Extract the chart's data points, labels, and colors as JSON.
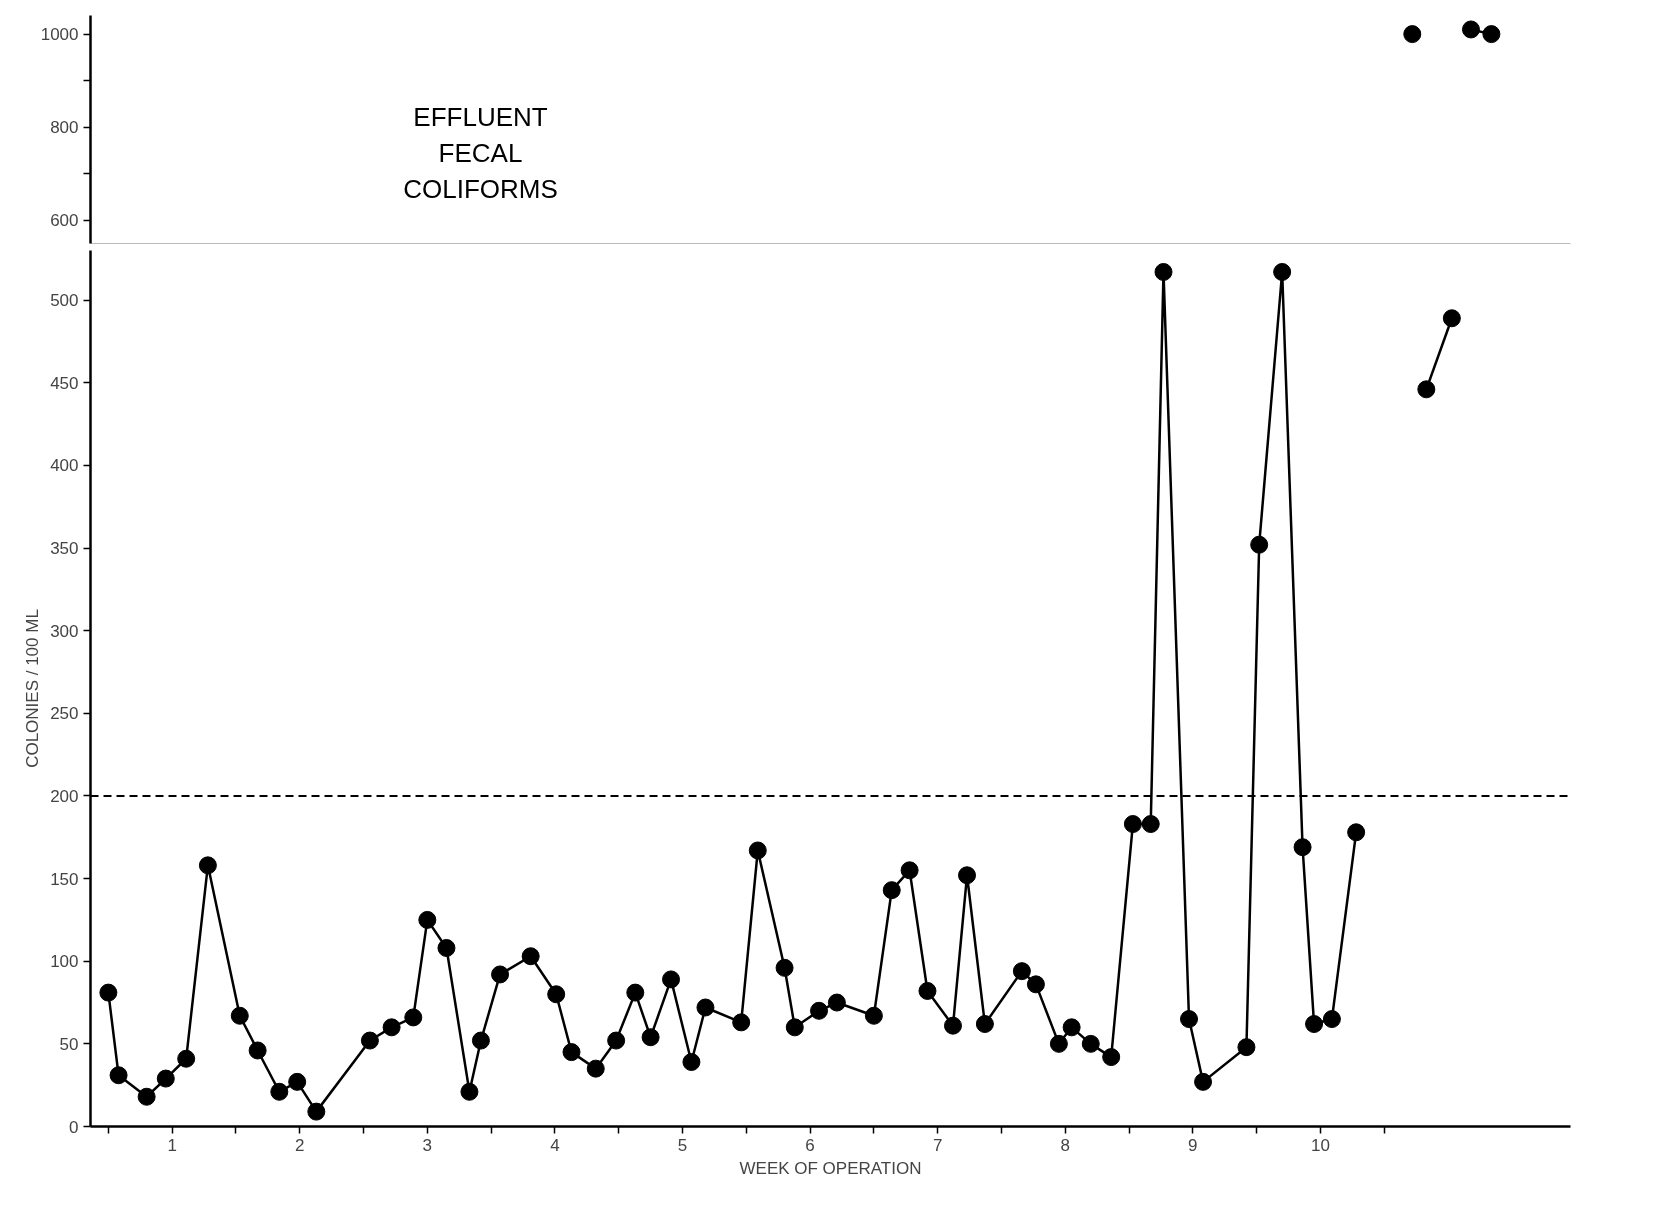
{
  "chart_data": [
    {
      "type": "line",
      "title": "EFFLUENT FECAL COLIFORMS",
      "marker": "circle",
      "line_style": "solid",
      "tick_labels": "y",
      "xlim": [
        -0.14,
        11.46
      ],
      "ylim": [
        550,
        1040
      ],
      "yticks": [
        600,
        {
          "value": 700,
          "label": null
        },
        800,
        {
          "value": 900,
          "label": null
        },
        1000
      ],
      "series": [
        {
          "color": "#000000",
          "x": [
            10.22
          ],
          "values": [
            1000
          ]
        },
        {
          "color": "#000000",
          "x": [
            10.68,
            10.84
          ],
          "values": [
            1010,
            1000
          ]
        }
      ]
    },
    {
      "type": "line",
      "xlabel": "WEEK OF OPERATION",
      "ylabel": "COLONIES / 100 ML",
      "marker": "circle",
      "line_style": "solid",
      "xlim": [
        -0.14,
        11.46
      ],
      "ylim": [
        0,
        530
      ],
      "yticks": [
        0,
        50,
        100,
        150,
        200,
        250,
        300,
        350,
        400,
        450,
        500
      ],
      "xticks": [
        {
          "value": 0,
          "label": null
        },
        {
          "value": 0.5,
          "label": "1"
        },
        {
          "value": 1,
          "label": null
        },
        {
          "value": 1.5,
          "label": "2"
        },
        {
          "value": 2,
          "label": null
        },
        {
          "value": 2.5,
          "label": "3"
        },
        {
          "value": 3,
          "label": null
        },
        {
          "value": 3.5,
          "label": "4"
        },
        {
          "value": 4,
          "label": null
        },
        {
          "value": 4.5,
          "label": "5"
        },
        {
          "value": 5,
          "label": null
        },
        {
          "value": 5.5,
          "label": "6"
        },
        {
          "value": 6,
          "label": null
        },
        {
          "value": 6.5,
          "label": "7"
        },
        {
          "value": 7,
          "label": null
        },
        {
          "value": 7.5,
          "label": "8"
        },
        {
          "value": 8,
          "label": null
        },
        {
          "value": 8.5,
          "label": "9"
        },
        {
          "value": 9,
          "label": null
        },
        {
          "value": 9.5,
          "label": "10"
        },
        {
          "value": 10,
          "label": null
        }
      ],
      "ref_lines": [
        {
          "axis": "y",
          "value": 200,
          "line_style": "dashed",
          "color": "#000000"
        }
      ],
      "series": [
        {
          "color": "#000000",
          "x": [
            0.0,
            0.08,
            0.3,
            0.45,
            0.61,
            0.78,
            1.03,
            1.17,
            1.34,
            1.48,
            1.63,
            2.05,
            2.22,
            2.39,
            2.5,
            2.65,
            2.83,
            2.92,
            3.07,
            3.31,
            3.51,
            3.63,
            3.82,
            3.98,
            4.13,
            4.25,
            4.41,
            4.57,
            4.68,
            4.96,
            5.09,
            5.3,
            5.38,
            5.57,
            5.71,
            6.0,
            6.14,
            6.28,
            6.42,
            6.62,
            6.73,
            6.87,
            7.16,
            7.27,
            7.45,
            7.55,
            7.7,
            7.86,
            8.03,
            8.17,
            8.27,
            8.47,
            8.58,
            8.92,
            9.02,
            9.2,
            9.36,
            9.45,
            9.59,
            9.78
          ],
          "values": [
            81,
            31,
            18,
            29,
            41,
            158,
            67,
            46,
            21,
            27,
            9,
            52,
            60,
            66,
            125,
            108,
            21,
            52,
            92,
            103,
            80,
            45,
            35,
            52,
            81,
            54,
            89,
            39,
            72,
            63,
            167,
            96,
            60,
            70,
            75,
            67,
            143,
            155,
            82,
            61,
            152,
            62,
            94,
            86,
            50,
            60,
            50,
            42,
            183,
            183,
            517,
            65,
            27,
            48,
            352,
            517,
            169,
            62,
            65,
            178
          ]
        },
        {
          "color": "#000000",
          "x": [
            10.33,
            10.53
          ],
          "values": [
            446,
            489
          ]
        }
      ]
    }
  ]
}
